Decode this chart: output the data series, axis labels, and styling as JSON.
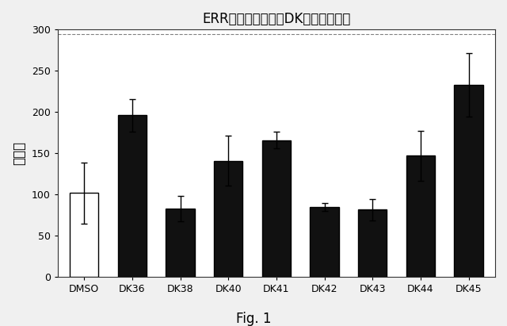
{
  "title": "ERRの活性に対するDK化合物の効果",
  "ylabel": "比活性",
  "fig_label": "Fig. 1",
  "categories": [
    "DMSO",
    "DK36",
    "DK38",
    "DK40",
    "DK41",
    "DK42",
    "DK43",
    "DK44",
    "DK45"
  ],
  "values": [
    102,
    196,
    83,
    141,
    166,
    85,
    82,
    147,
    233
  ],
  "errors": [
    37,
    20,
    15,
    30,
    10,
    5,
    13,
    30,
    38
  ],
  "bar_colors": [
    "#ffffff",
    "#111111",
    "#111111",
    "#111111",
    "#111111",
    "#111111",
    "#111111",
    "#111111",
    "#111111"
  ],
  "bar_edge_colors": [
    "#000000",
    "#000000",
    "#000000",
    "#000000",
    "#000000",
    "#000000",
    "#000000",
    "#000000",
    "#000000"
  ],
  "ylim": [
    0,
    300
  ],
  "yticks": [
    0,
    50,
    100,
    150,
    200,
    250,
    300
  ],
  "outer_bg_color": "#f0f0f0",
  "inner_bg_color": "#ffffff",
  "title_fontsize": 12,
  "axis_fontsize": 12,
  "tick_fontsize": 9,
  "fig_label_fontsize": 12
}
